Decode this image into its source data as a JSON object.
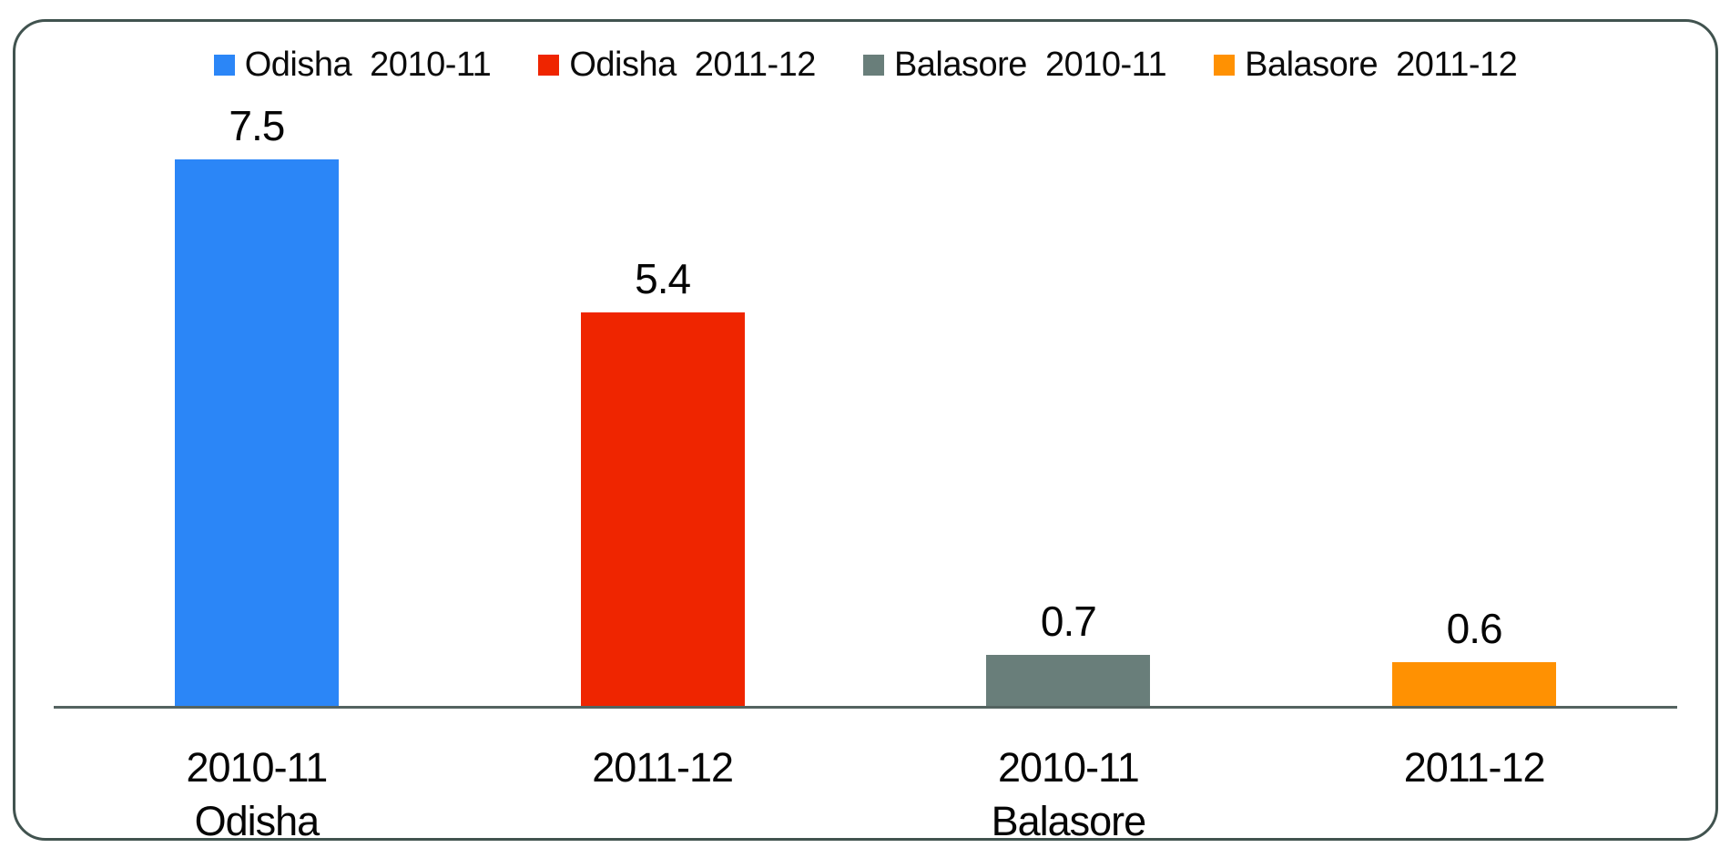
{
  "frame": {
    "border_color": "#41534F",
    "background_color": "#ffffff"
  },
  "legend": {
    "position": "top",
    "items": [
      {
        "label": "Odisha 2010-11",
        "swatch_color": "#2B86F7"
      },
      {
        "label": "Odisha 2011-12",
        "swatch_color": "#EF2500"
      },
      {
        "label": "Balasore 2010-11",
        "swatch_color": "#697E7A"
      },
      {
        "label": "Balasore 2011-12",
        "swatch_color": "#FF9102"
      }
    ]
  },
  "chart_data": {
    "type": "bar",
    "title": "",
    "xlabel": "",
    "ylabel": "",
    "ylim": [
      0,
      8.2
    ],
    "grid": false,
    "legend_position": "top",
    "axis_line_color": "#546360",
    "categories": [
      "2010-11 Odisha",
      "2011-12 Odisha",
      "2010-11 Balasore",
      "2011-12 Balasore"
    ],
    "values": [
      7.5,
      5.4,
      0.7,
      0.6
    ],
    "points": [
      {
        "id": "odisha-2010-11",
        "name": "Odisha 2010-11",
        "category_line1": "2010-11",
        "category_line2": "Odisha",
        "value": 7.5,
        "value_label": "7.5",
        "color": "#2B86F7"
      },
      {
        "id": "odisha-2011-12",
        "name": "Odisha 2011-12",
        "category_line1": "2011-12",
        "category_line2": "",
        "value": 5.4,
        "value_label": "5.4",
        "color": "#EF2500"
      },
      {
        "id": "balasore-2010-11",
        "name": "Balasore 2010-11",
        "category_line1": "2010-11",
        "category_line2": "Balasore",
        "value": 0.7,
        "value_label": "0.7",
        "color": "#697E7A"
      },
      {
        "id": "balasore-2011-12",
        "name": "Balasore 2011-12",
        "category_line1": "2011-12",
        "category_line2": "",
        "value": 0.6,
        "value_label": "0.6",
        "color": "#FF9102"
      }
    ]
  }
}
